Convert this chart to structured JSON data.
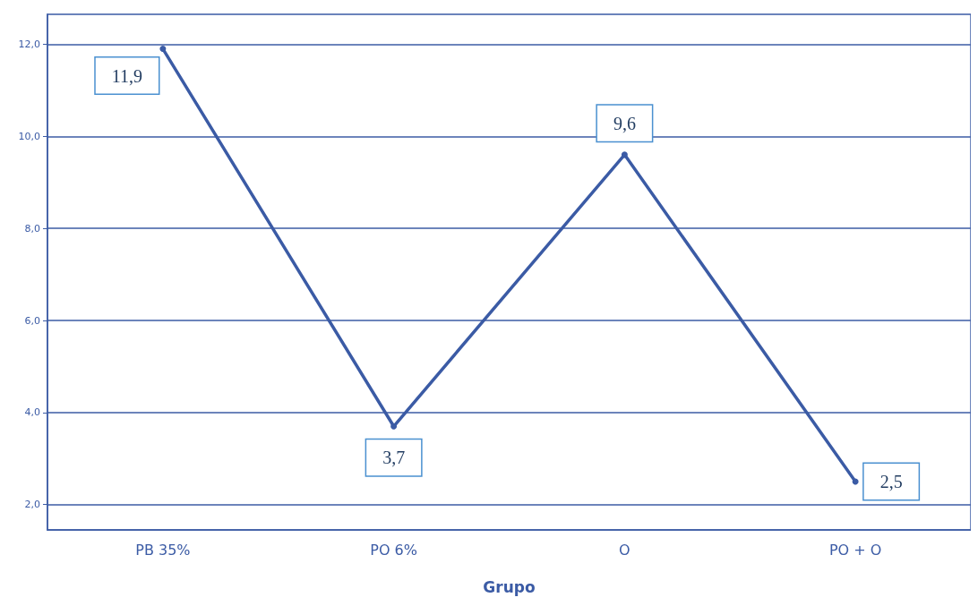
{
  "chart_data": {
    "type": "line",
    "xlabel": "Grupo",
    "categories": [
      "PB 35%",
      "PO 6%",
      "O",
      "PO + O"
    ],
    "series": [
      {
        "color": "#3b5ba5",
        "values": [
          11.9,
          3.7,
          9.6,
          2.5
        ],
        "value_labels": [
          "11,9",
          "3,7",
          "9,6",
          "2,5"
        ]
      }
    ],
    "ylim": [
      1.45,
      12.65
    ],
    "yticks": [
      {
        "value": 2,
        "label": "2,0"
      },
      {
        "value": 4,
        "label": "4,0"
      },
      {
        "value": 6,
        "label": "6,0"
      },
      {
        "value": 8,
        "label": "8,0"
      },
      {
        "value": 10,
        "label": "10,0"
      },
      {
        "value": 12,
        "label": "12,0"
      }
    ],
    "grid": "y",
    "marker": "circle",
    "line_style": "solid"
  }
}
